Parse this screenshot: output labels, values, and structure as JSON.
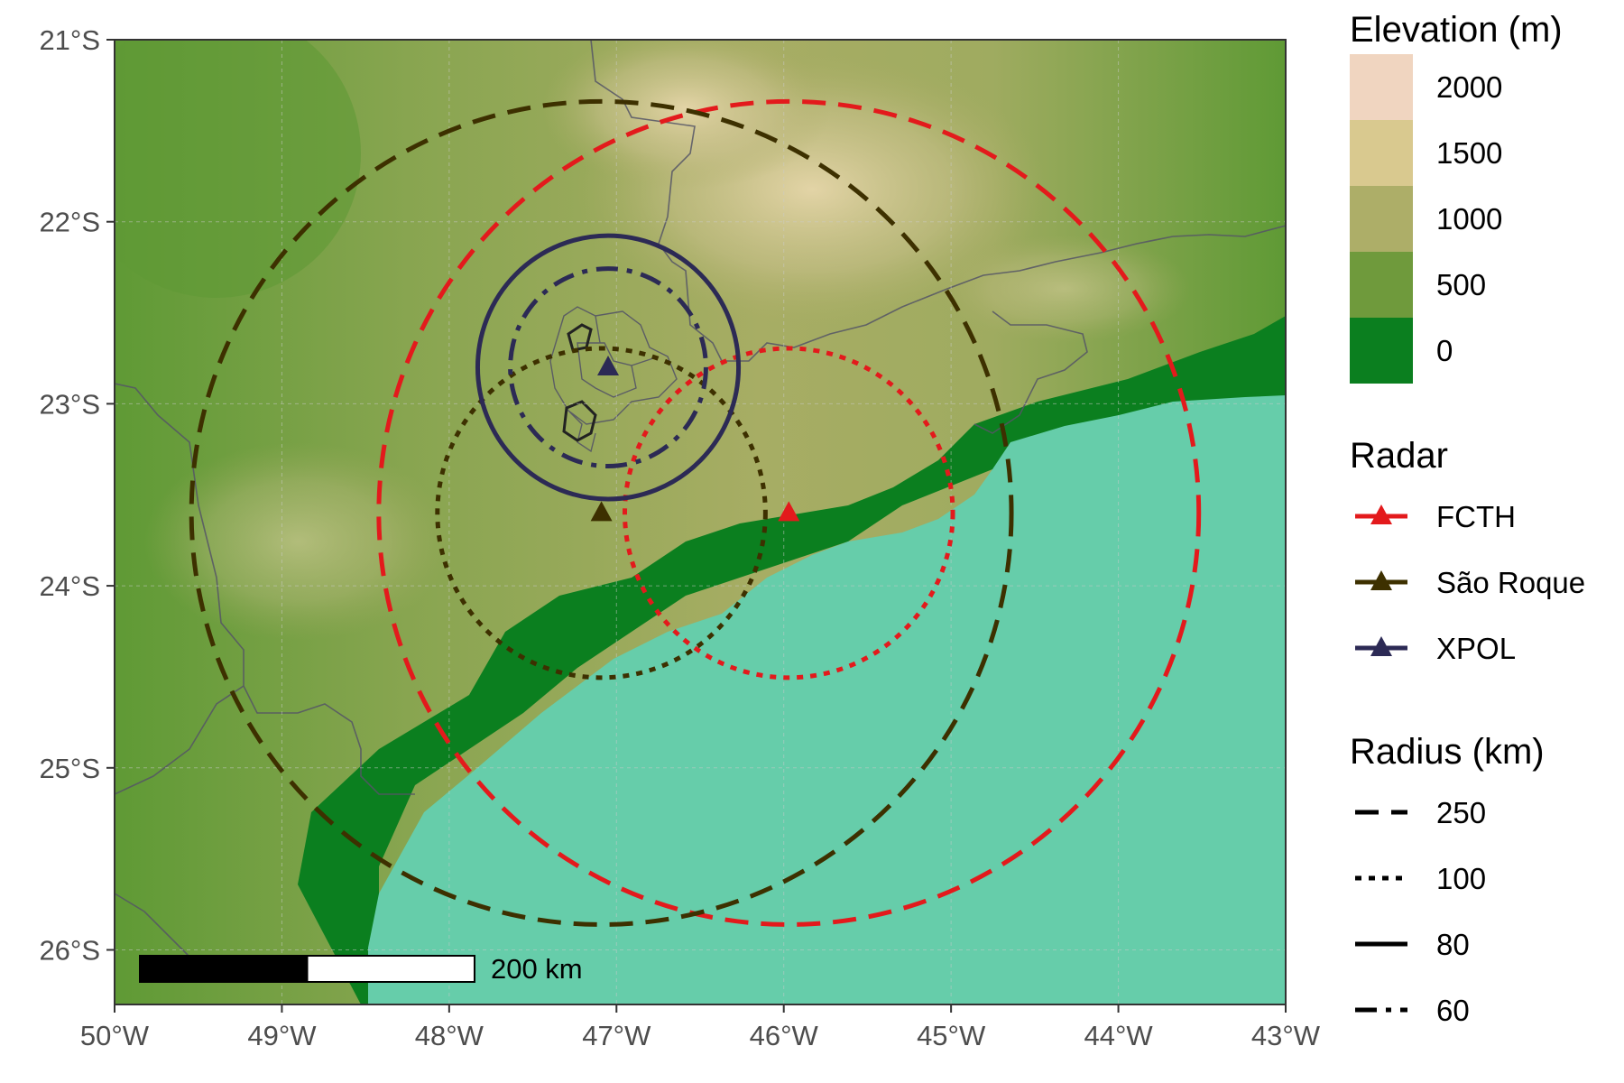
{
  "map": {
    "x_ticks": [
      "50°W",
      "49°W",
      "48°W",
      "47°W",
      "46°W",
      "45°W",
      "44°W",
      "43°W"
    ],
    "y_ticks": [
      "21°S",
      "22°S",
      "23°S",
      "24°S",
      "25°S",
      "26°S"
    ],
    "extent": {
      "lon_min": -50,
      "lon_max": -43,
      "lat_min": -26.3,
      "lat_max": -21
    },
    "colors": {
      "ocean": "#66CDAA",
      "lowland": "#0b7f1f",
      "grid": "#cccccc",
      "borders": "#555566"
    },
    "scale_bar": {
      "label": "200 km",
      "km": 200
    }
  },
  "radars": [
    {
      "name": "FCTH",
      "lon": -45.97,
      "lat": -23.6,
      "color": "#e31a1c",
      "radii_km": [
        250,
        100
      ]
    },
    {
      "name": "São Roque",
      "lon": -47.09,
      "lat": -23.6,
      "color": "#3d3000",
      "radii_km": [
        250,
        100
      ]
    },
    {
      "name": "XPOL",
      "lon": -47.05,
      "lat": -22.8,
      "color": "#2c2a55",
      "radii_km": [
        80,
        60
      ]
    }
  ],
  "legend": {
    "elevation": {
      "title": "Elevation (m)",
      "items": [
        {
          "label": "2000",
          "color": "#F0D5C0"
        },
        {
          "label": "1500",
          "color": "#D9C98F"
        },
        {
          "label": "1000",
          "color": "#ADAE68"
        },
        {
          "label": "500",
          "color": "#6F9A3C"
        },
        {
          "label": "0",
          "color": "#0B7F1F"
        }
      ]
    },
    "radar": {
      "title": "Radar",
      "items": [
        {
          "label": "FCTH",
          "color": "#e31a1c"
        },
        {
          "label": "São Roque",
          "color": "#3d3000"
        },
        {
          "label": "XPOL",
          "color": "#2c2a55"
        }
      ]
    },
    "radius": {
      "title": "Radius (km)",
      "items": [
        {
          "label": "250",
          "style": "dashed"
        },
        {
          "label": "100",
          "style": "dotted"
        },
        {
          "label": "80",
          "style": "solid"
        },
        {
          "label": "60",
          "style": "dotdash"
        }
      ]
    }
  }
}
